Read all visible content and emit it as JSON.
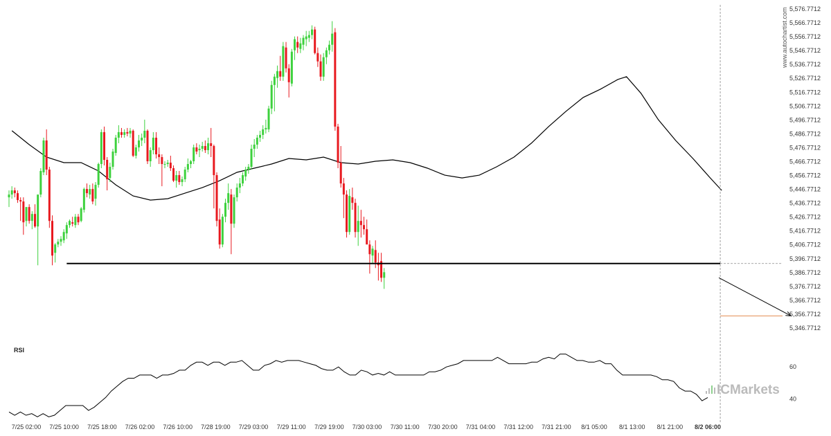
{
  "watermark": "www.autochartist.com",
  "brand": "ICMarkets",
  "colors": {
    "up": "#3dd13d",
    "down": "#e8191f",
    "support": "#000000",
    "target": "#e8a070",
    "ma": "#000000",
    "rsi": "#000000"
  },
  "chart_data": [
    {
      "type": "candlestick",
      "title": "",
      "ylim": [
        5339.7712,
        5579.7712
      ],
      "y_ticks": [
        "5,346.7712",
        "5,356.7712",
        "5,366.7712",
        "5,376.7712",
        "5,386.7712",
        "5,396.7712",
        "5,406.7712",
        "5,416.7712",
        "5,426.7712",
        "5,436.7712",
        "5,446.7712",
        "5,456.7712",
        "5,466.7712",
        "5,476.7712",
        "5,486.7712",
        "5,496.7712",
        "5,506.7712",
        "5,516.7712",
        "5,526.7712",
        "5,536.7712",
        "5,546.7712",
        "5,556.7712",
        "5,566.7712",
        "5,576.7712"
      ],
      "x_ticks": [
        "7/25 02:00",
        "7/25 10:00",
        "7/25 18:00",
        "7/26 02:00",
        "7/26 10:00",
        "7/28 19:00",
        "7/29 03:00",
        "7/29 11:00",
        "7/29 19:00",
        "7/30 03:00",
        "7/30 11:00",
        "7/30 20:00",
        "7/31 04:00",
        "7/31 12:00",
        "7/31 21:00",
        "8/1 05:00",
        "8/1 13:00",
        "8/1 21:00",
        "8/2 06:00"
      ],
      "candles": [
        [
          5441,
          5446,
          5434,
          5443
        ],
        [
          5443,
          5449,
          5440,
          5446
        ],
        [
          5446,
          5448,
          5441,
          5444
        ],
        [
          5444,
          5446,
          5437,
          5439
        ],
        [
          5439,
          5441,
          5424,
          5438
        ],
        [
          5438,
          5441,
          5414,
          5423
        ],
        [
          5424,
          5434,
          5420,
          5434
        ],
        [
          5434,
          5436,
          5422,
          5424
        ],
        [
          5424,
          5431,
          5418,
          5429
        ],
        [
          5429,
          5436,
          5419,
          5420
        ],
        [
          5420,
          5441,
          5392,
          5443
        ],
        [
          5443,
          5462,
          5441,
          5460
        ],
        [
          5459,
          5484,
          5457,
          5482
        ],
        [
          5482,
          5490,
          5457,
          5461
        ],
        [
          5461,
          5463,
          5419,
          5424
        ],
        [
          5424,
          5428,
          5392,
          5399
        ],
        [
          5401,
          5408,
          5394,
          5407
        ],
        [
          5407,
          5411,
          5405,
          5409
        ],
        [
          5409,
          5413,
          5406,
          5411
        ],
        [
          5410,
          5418,
          5408,
          5416
        ],
        [
          5415,
          5423,
          5411,
          5421
        ],
        [
          5421,
          5425,
          5419,
          5424
        ],
        [
          5423,
          5427,
          5420,
          5422
        ],
        [
          5421,
          5429,
          5419,
          5427
        ],
        [
          5427,
          5429,
          5421,
          5423
        ],
        [
          5424,
          5434,
          5423,
          5433
        ],
        [
          5432,
          5448,
          5430,
          5447
        ],
        [
          5447,
          5451,
          5441,
          5444
        ],
        [
          5443,
          5450,
          5440,
          5447
        ],
        [
          5447,
          5451,
          5436,
          5438
        ],
        [
          5440,
          5452,
          5435,
          5450
        ],
        [
          5450,
          5466,
          5448,
          5465
        ],
        [
          5465,
          5490,
          5462,
          5488
        ],
        [
          5488,
          5492,
          5464,
          5468
        ],
        [
          5468,
          5470,
          5446,
          5454
        ],
        [
          5455,
          5466,
          5452,
          5463
        ],
        [
          5463,
          5476,
          5461,
          5474
        ],
        [
          5473,
          5486,
          5471,
          5484
        ],
        [
          5484,
          5493,
          5480,
          5488
        ],
        [
          5488,
          5491,
          5484,
          5486
        ],
        [
          5486,
          5490,
          5484,
          5488
        ],
        [
          5488,
          5491,
          5485,
          5487
        ],
        [
          5487,
          5491,
          5484,
          5489
        ],
        [
          5489,
          5490,
          5470,
          5471
        ],
        [
          5471,
          5479,
          5469,
          5477
        ],
        [
          5477,
          5486,
          5474,
          5482
        ],
        [
          5482,
          5487,
          5478,
          5484
        ],
        [
          5484,
          5497,
          5480,
          5489
        ],
        [
          5489,
          5490,
          5465,
          5467
        ],
        [
          5467,
          5477,
          5463,
          5475
        ],
        [
          5475,
          5488,
          5472,
          5484
        ],
        [
          5484,
          5488,
          5469,
          5472
        ],
        [
          5472,
          5477,
          5465,
          5470
        ],
        [
          5470,
          5472,
          5449,
          5465
        ],
        [
          5465,
          5467,
          5462,
          5465
        ],
        [
          5465,
          5468,
          5463,
          5466
        ],
        [
          5466,
          5471,
          5460,
          5462
        ],
        [
          5462,
          5464,
          5452,
          5453
        ],
        [
          5453,
          5460,
          5448,
          5457
        ],
        [
          5457,
          5460,
          5450,
          5452
        ],
        [
          5452,
          5456,
          5449,
          5454
        ],
        [
          5454,
          5463,
          5452,
          5461
        ],
        [
          5461,
          5469,
          5459,
          5465
        ],
        [
          5465,
          5468,
          5462,
          5467
        ],
        [
          5467,
          5479,
          5465,
          5477
        ],
        [
          5477,
          5480,
          5472,
          5474
        ],
        [
          5475,
          5479,
          5470,
          5476
        ],
        [
          5476,
          5481,
          5474,
          5478
        ],
        [
          5478,
          5482,
          5473,
          5475
        ],
        [
          5475,
          5484,
          5472,
          5480
        ],
        [
          5480,
          5491,
          5470,
          5478
        ],
        [
          5478,
          5479,
          5433,
          5457
        ],
        [
          5457,
          5459,
          5420,
          5424
        ],
        [
          5425,
          5433,
          5404,
          5407
        ],
        [
          5407,
          5429,
          5405,
          5427
        ],
        [
          5427,
          5440,
          5423,
          5437
        ],
        [
          5437,
          5451,
          5432,
          5444
        ],
        [
          5443,
          5447,
          5400,
          5422
        ],
        [
          5422,
          5443,
          5419,
          5441
        ],
        [
          5441,
          5451,
          5438,
          5448
        ],
        [
          5448,
          5455,
          5444,
          5451
        ],
        [
          5451,
          5459,
          5449,
          5457
        ],
        [
          5456,
          5463,
          5453,
          5461
        ],
        [
          5461,
          5465,
          5458,
          5463
        ],
        [
          5463,
          5479,
          5461,
          5476
        ],
        [
          5476,
          5483,
          5470,
          5479
        ],
        [
          5479,
          5486,
          5476,
          5484
        ],
        [
          5484,
          5489,
          5481,
          5486
        ],
        [
          5486,
          5493,
          5483,
          5490
        ],
        [
          5490,
          5497,
          5487,
          5491
        ],
        [
          5490,
          5507,
          5488,
          5505
        ],
        [
          5505,
          5525,
          5501,
          5522
        ],
        [
          5522,
          5530,
          5503,
          5528
        ],
        [
          5527,
          5536,
          5520,
          5532
        ],
        [
          5532,
          5543,
          5525,
          5528
        ],
        [
          5528,
          5553,
          5525,
          5550
        ],
        [
          5549,
          5553,
          5531,
          5534
        ],
        [
          5534,
          5537,
          5513,
          5524
        ],
        [
          5523,
          5548,
          5521,
          5546
        ],
        [
          5547,
          5557,
          5540,
          5555
        ],
        [
          5553,
          5557,
          5545,
          5549
        ],
        [
          5548,
          5556,
          5545,
          5552
        ],
        [
          5551,
          5558,
          5547,
          5556
        ],
        [
          5555,
          5561,
          5550,
          5557
        ],
        [
          5556,
          5561,
          5553,
          5558
        ],
        [
          5558,
          5565,
          5555,
          5562
        ],
        [
          5562,
          5564,
          5544,
          5545
        ],
        [
          5545,
          5549,
          5535,
          5539
        ],
        [
          5539,
          5544,
          5525,
          5528
        ],
        [
          5528,
          5545,
          5525,
          5542
        ],
        [
          5542,
          5549,
          5537,
          5547
        ],
        [
          5547,
          5554,
          5544,
          5551
        ],
        [
          5551,
          5568,
          5546,
          5559
        ],
        [
          5560,
          5563,
          5489,
          5492
        ],
        [
          5492,
          5494,
          5462,
          5466
        ],
        [
          5466,
          5478,
          5448,
          5451
        ],
        [
          5451,
          5455,
          5426,
          5443
        ],
        [
          5443,
          5446,
          5412,
          5416
        ],
        [
          5416,
          5447,
          5414,
          5442
        ],
        [
          5441,
          5448,
          5432,
          5437
        ],
        [
          5437,
          5440,
          5412,
          5416
        ],
        [
          5416,
          5435,
          5406,
          5424
        ],
        [
          5424,
          5432,
          5412,
          5421
        ],
        [
          5421,
          5427,
          5414,
          5418
        ],
        [
          5418,
          5425,
          5408,
          5407
        ],
        [
          5407,
          5410,
          5386,
          5400
        ],
        [
          5399,
          5406,
          5393,
          5404
        ],
        [
          5403,
          5410,
          5390,
          5394
        ],
        [
          5394,
          5401,
          5381,
          5392
        ],
        [
          5395,
          5401,
          5380,
          5383
        ],
        [
          5383,
          5390,
          5375,
          5387
        ]
      ],
      "ma_line": [
        [
          1,
          5489
        ],
        [
          7,
          5479
        ],
        [
          13,
          5470
        ],
        [
          19,
          5466
        ],
        [
          25,
          5466
        ],
        [
          31,
          5460
        ],
        [
          37,
          5450
        ],
        [
          43,
          5442
        ],
        [
          49,
          5439
        ],
        [
          55,
          5440
        ],
        [
          61,
          5444
        ],
        [
          67,
          5448
        ],
        [
          73,
          5453
        ],
        [
          79,
          5459
        ],
        [
          85,
          5462
        ],
        [
          91,
          5465
        ],
        [
          97,
          5469
        ],
        [
          103,
          5468
        ],
        [
          109,
          5470
        ],
        [
          115,
          5466
        ],
        [
          121,
          5465
        ],
        [
          127,
          5467
        ],
        [
          133,
          5468
        ],
        [
          139,
          5466
        ],
        [
          145,
          5462
        ],
        [
          151,
          5457
        ],
        [
          157,
          5455
        ],
        [
          163,
          5457
        ],
        [
          169,
          5463
        ],
        [
          175,
          5470
        ],
        [
          181,
          5480
        ],
        [
          187,
          5492
        ],
        [
          193,
          5503
        ],
        [
          199,
          5513
        ],
        [
          205,
          5519
        ],
        [
          211,
          5526
        ],
        [
          214,
          5528
        ],
        [
          219,
          5516
        ],
        [
          225,
          5497
        ],
        [
          231,
          5482
        ],
        [
          237,
          5469
        ],
        [
          243,
          5455
        ],
        [
          247,
          5446
        ]
      ],
      "support_level": 5393.3,
      "support_start_index": 20,
      "projection": {
        "from_index": 246,
        "from_value": 5383,
        "to_index": 271,
        "to_value": 5355.5
      },
      "target_level": 5355.5,
      "current_index": 246,
      "current_level": 5393.3
    },
    {
      "type": "line",
      "title": "RSI",
      "ylim": [
        30,
        73
      ],
      "y_ticks": [
        "40",
        "60"
      ],
      "values": [
        32,
        30,
        32,
        30,
        31,
        29,
        31,
        29,
        30,
        33,
        36,
        36,
        36,
        36,
        33,
        35,
        38,
        41,
        45,
        48,
        51,
        53,
        53,
        55,
        55,
        55,
        53,
        55,
        55,
        56,
        58,
        58,
        61,
        63,
        63,
        61,
        63,
        63,
        61,
        63,
        63,
        64,
        61,
        58,
        58,
        61,
        62,
        64,
        63,
        64,
        64,
        64,
        63,
        62,
        61,
        59,
        58,
        58,
        60,
        57,
        55,
        55,
        58,
        57,
        55,
        56,
        55,
        57,
        55,
        55,
        55,
        55,
        55,
        55,
        57,
        57,
        58,
        60,
        61,
        62,
        64,
        64,
        64,
        64,
        64,
        64,
        66,
        64,
        62,
        62,
        62,
        62,
        63,
        63,
        65,
        66,
        65,
        68,
        68,
        66,
        64,
        64,
        63,
        63,
        64,
        62,
        62,
        58,
        55,
        55,
        55,
        55,
        55,
        55,
        54,
        52,
        52,
        51,
        47,
        45,
        45,
        43,
        39,
        41
      ]
    }
  ]
}
